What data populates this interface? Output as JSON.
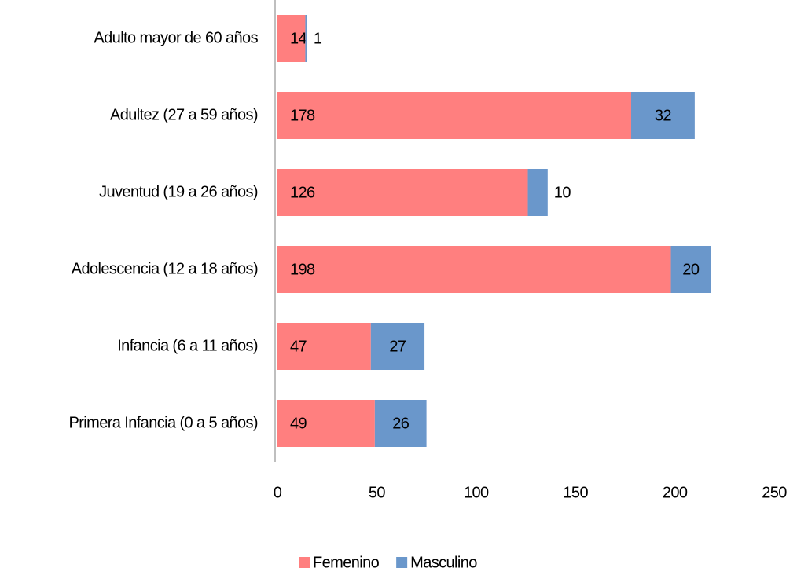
{
  "chart_data": {
    "type": "bar",
    "orientation": "horizontal",
    "stacked": true,
    "categories": [
      "Adulto mayor de 60 años",
      "Adultez (27 a 59 años)",
      "Juventud (19 a 26 años)",
      "Adolescencia (12 a 18 años)",
      "Infancia (6 a 11 años)",
      "Primera Infancia (0 a 5 años)"
    ],
    "series": [
      {
        "name": "Femenino",
        "color": "#ff7f7f",
        "values": [
          14,
          178,
          126,
          198,
          47,
          49
        ]
      },
      {
        "name": "Masculino",
        "color": "#6a97cb",
        "values": [
          1,
          32,
          10,
          20,
          27,
          26
        ]
      }
    ],
    "xlim": [
      0,
      250
    ],
    "xticks": [
      0,
      50,
      100,
      150,
      200,
      250
    ],
    "grid": false,
    "legend": "bottom"
  }
}
